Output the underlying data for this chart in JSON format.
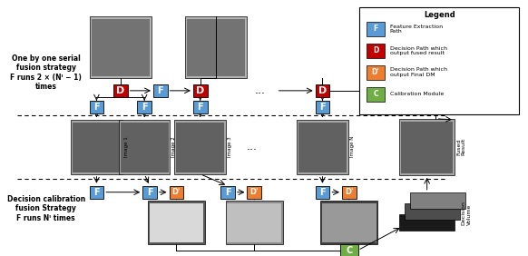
{
  "bg_color": "#ffffff",
  "blue_color": "#5B9BD5",
  "red_color": "#C00000",
  "orange_color": "#ED7D31",
  "green_color": "#70AD47",
  "legend_title": "Legend",
  "legend_items": [
    {
      "label": "F",
      "color": "#5B9BD5",
      "desc": "Feature Extraction\nPath"
    },
    {
      "label": "D",
      "color": "#C00000",
      "desc": "Decision Path which\noutput fused result"
    },
    {
      "label": "D'",
      "color": "#ED7D31",
      "desc": "Decision Path which\noutput Final DM"
    },
    {
      "label": "C",
      "color": "#70AD47",
      "desc": "Calibration Module"
    }
  ],
  "top_text": "One by one serial\nfusion strategy\nF runs 2 × (Nᴵ − 1)\ntimes",
  "bottom_text": "Decision calibration\nfusion Strategy\nF runs Nᴵ times",
  "fused_result_label": "Fused\nResult",
  "decision_volume_label": "Decision\nVolume"
}
